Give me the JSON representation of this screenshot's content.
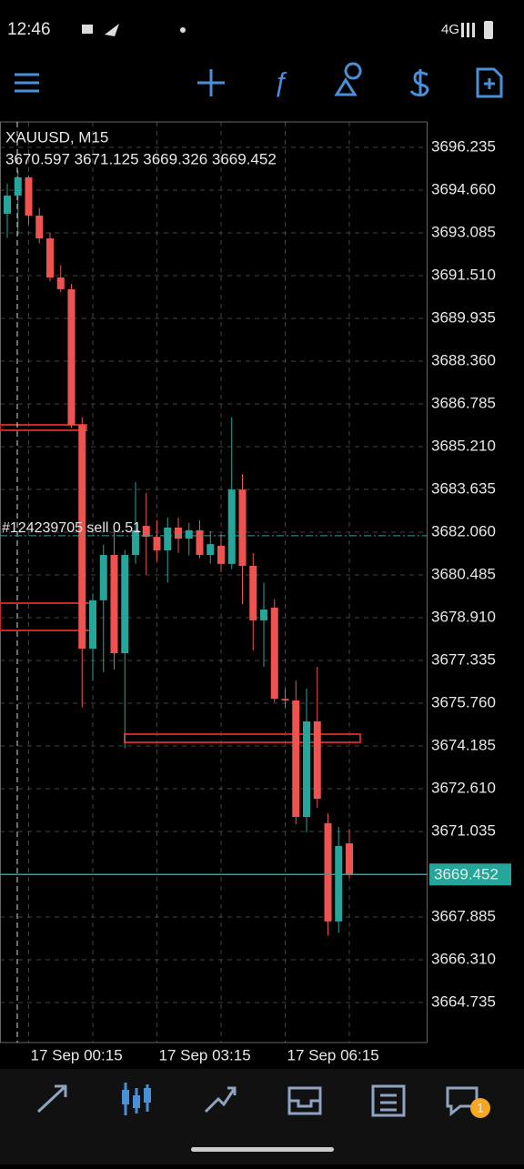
{
  "status_bar": {
    "time": "12:46",
    "network": "4G"
  },
  "chart_data": {
    "type": "candlestick",
    "title": "XAUUSD, M15",
    "subtitle": "3670.597 3671.125 3669.326 3669.452",
    "categories": [
      null,
      null,
      "17 Sep 00:15",
      null,
      null,
      null,
      null,
      null,
      null,
      null,
      null,
      null,
      null,
      null,
      "17 Sep 03:15",
      null,
      null,
      null,
      null,
      null,
      null,
      null,
      null,
      null,
      null,
      null,
      "17 Sep 06:15",
      null,
      null,
      null,
      null,
      null,
      null
    ],
    "open": [
      3693.79,
      3694.46,
      3695.13,
      3693.72,
      3692.88,
      3691.44,
      3691.01,
      3686.01,
      3677.77,
      3679.55,
      3681.22,
      3677.6,
      3681.22,
      3682.29,
      3681.89,
      3681.39,
      3682.23,
      3681.82,
      3682.13,
      3681.22,
      3681.56,
      3680.89,
      3683.63,
      3680.82,
      3678.81,
      3679.28,
      3675.92,
      3675.86,
      3671.57,
      3675.09,
      3671.34,
      3667.72,
      3670.597
    ],
    "high": [
      3694.9,
      3695.39,
      3695.2,
      3694.0,
      3693.1,
      3691.9,
      3691.2,
      3686.3,
      3679.8,
      3681.6,
      3682.1,
      3681.4,
      3683.9,
      3683.5,
      3682.5,
      3682.6,
      3682.6,
      3682.4,
      3682.5,
      3682.1,
      3682.0,
      3686.3,
      3684.2,
      3681.3,
      3680.2,
      3679.6,
      3676.3,
      3676.6,
      3676.3,
      3677.1,
      3671.7,
      3671.2,
      3671.125
    ],
    "low": [
      3692.9,
      3693.0,
      3693.4,
      3692.7,
      3691.3,
      3690.9,
      3685.9,
      3675.6,
      3676.6,
      3676.9,
      3677.0,
      3674.1,
      3680.9,
      3680.5,
      3681.0,
      3680.2,
      3681.3,
      3681.2,
      3681.1,
      3680.9,
      3680.6,
      3680.7,
      3679.4,
      3677.7,
      3677.1,
      3675.8,
      3675.6,
      3671.3,
      3671.0,
      3671.9,
      3667.2,
      3667.3,
      3669.326
    ],
    "close": [
      3694.46,
      3695.13,
      3693.72,
      3692.88,
      3691.44,
      3691.01,
      3686.01,
      3677.77,
      3679.55,
      3681.22,
      3677.6,
      3681.22,
      3682.13,
      3681.89,
      3681.39,
      3682.23,
      3681.82,
      3682.13,
      3681.22,
      3681.62,
      3680.89,
      3683.63,
      3680.82,
      3678.81,
      3679.21,
      3675.92,
      3675.86,
      3671.57,
      3675.09,
      3672.24,
      3667.72,
      3670.5,
      3669.452
    ],
    "up_color": "#26a69a",
    "down_color": "#ef5350",
    "ylim": [
      3663.259,
      3697.173
    ],
    "yticks": [
      3696.235,
      {
        "value": 3694.66,
        "label": "3694.660"
      },
      3693.085,
      {
        "value": 3691.51,
        "label": "3691.510"
      },
      3689.935,
      {
        "value": 3688.36,
        "label": "3688.360"
      },
      3686.785,
      {
        "value": 3685.21,
        "label": "3685.210"
      },
      3683.635,
      {
        "value": 3682.06,
        "label": "3682.060"
      },
      3680.485,
      {
        "value": 3678.91,
        "label": "3678.910"
      },
      3677.335,
      {
        "value": 3675.76,
        "label": "3675.760"
      },
      3674.185,
      {
        "value": 3672.61,
        "label": "3672.610"
      },
      3671.035,
      3667.885,
      {
        "value": 3666.31,
        "label": "3666.310"
      },
      3664.735
    ],
    "grid": true,
    "current_price": 3669.452,
    "order_label": "#124239705 sell 0.51",
    "order_price": 3681.93
  },
  "nav": {
    "chat_badge": "1"
  }
}
